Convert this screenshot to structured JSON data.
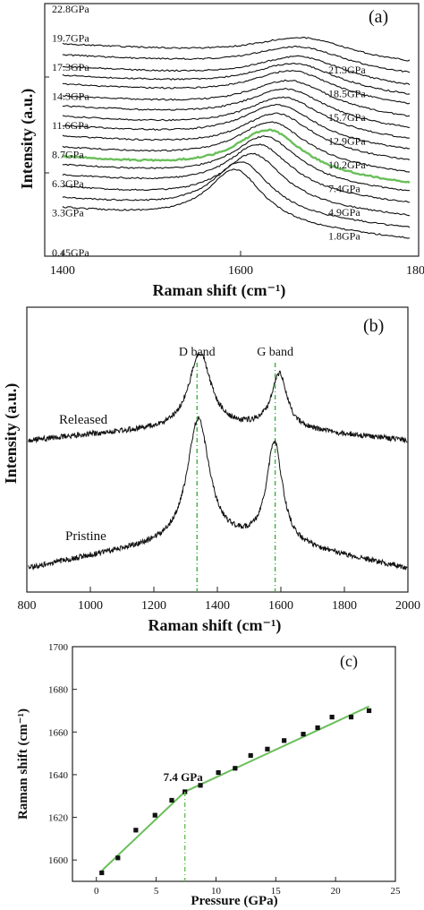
{
  "chart_data": [
    {
      "panel": "(a)",
      "type": "line",
      "xlabel": "Raman shift (cm⁻¹)",
      "ylabel": "Intensity (a.u.)",
      "xlim": [
        1380,
        1800
      ],
      "x_ticks": [
        1400,
        1600,
        1800
      ],
      "highlight_color": "#6abf5a",
      "line_color": "#111111",
      "series": [
        {
          "name": "0.45GPa",
          "pressure": 0.45,
          "peak": 1594
        },
        {
          "name": "1.8GPa",
          "pressure": 1.8,
          "peak": 1601
        },
        {
          "name": "3.3GPa",
          "pressure": 3.3,
          "peak": 1614
        },
        {
          "name": "4.9GPa",
          "pressure": 4.9,
          "peak": 1621
        },
        {
          "name": "6.3GPa",
          "pressure": 6.3,
          "peak": 1628
        },
        {
          "name": "7.4GPa",
          "pressure": 7.4,
          "peak": 1632
        },
        {
          "name": "8.7GPa",
          "pressure": 8.7,
          "peak": 1635
        },
        {
          "name": "10.2GPa",
          "pressure": 10.2,
          "peak": 1641
        },
        {
          "name": "11.6GPa",
          "pressure": 11.6,
          "peak": 1643
        },
        {
          "name": "12.9GPa",
          "pressure": 12.9,
          "peak": 1649
        },
        {
          "name": "14.3GPa",
          "pressure": 14.3,
          "peak": 1652
        },
        {
          "name": "15.7GPa",
          "pressure": 15.7,
          "peak": 1656
        },
        {
          "name": "17.3GPa",
          "pressure": 17.3,
          "peak": 1659
        },
        {
          "name": "18.5GPa",
          "pressure": 18.5,
          "peak": 1662
        },
        {
          "name": "19.7GPa",
          "pressure": 19.7,
          "peak": 1667
        },
        {
          "name": "21.3GPa",
          "pressure": 21.3,
          "peak": 1667
        },
        {
          "name": "22.8GPa",
          "pressure": 22.8,
          "peak": 1670
        }
      ],
      "highlighted_series": "7.4GPa"
    },
    {
      "panel": "(b)",
      "type": "line",
      "xlabel": "Raman shift (cm⁻¹)",
      "ylabel": "Intensity (a.u.)",
      "xlim": [
        800,
        2000
      ],
      "x_ticks": [
        800,
        1000,
        1200,
        1400,
        1600,
        1800,
        2000
      ],
      "series": [
        {
          "name": "Released",
          "d_peak": 1345,
          "g_peak": 1595
        },
        {
          "name": "Pristine",
          "d_peak": 1340,
          "g_peak": 1580
        }
      ],
      "reference_lines": [
        {
          "label": "D band",
          "x": 1336
        },
        {
          "label": "G band",
          "x": 1582
        }
      ],
      "reference_color": "#3cb043"
    },
    {
      "panel": "(c)",
      "type": "scatter",
      "xlabel": "Pressure (GPa)",
      "ylabel": "Raman shift (cm⁻¹)",
      "xlim": [
        -2,
        25
      ],
      "ylim": [
        1590,
        1700
      ],
      "x_ticks": [
        0,
        5,
        10,
        15,
        20,
        25
      ],
      "y_ticks": [
        1600,
        1620,
        1640,
        1660,
        1680,
        1700
      ],
      "points": {
        "x": [
          0.45,
          1.8,
          3.3,
          4.9,
          6.3,
          7.4,
          8.7,
          10.2,
          11.6,
          12.9,
          14.3,
          15.7,
          17.3,
          18.5,
          19.7,
          21.3,
          22.8
        ],
        "y": [
          1594,
          1601,
          1614,
          1621,
          1628,
          1632,
          1635,
          1641,
          1643,
          1649,
          1652,
          1656,
          1659,
          1662,
          1667,
          1667,
          1670
        ]
      },
      "fit_segments": [
        {
          "x": [
            0.45,
            7.4
          ],
          "y": [
            1595,
            1632
          ]
        },
        {
          "x": [
            7.4,
            22.8
          ],
          "y": [
            1632,
            1672
          ]
        }
      ],
      "annotation": {
        "text": "7.4 GPa",
        "x": 7.4
      },
      "fit_color": "#6abf5a"
    }
  ],
  "panels": {
    "a": {
      "tag": "(a)",
      "left_labels": [
        "22.8GPa",
        "19.7GPa",
        "17.3GPa",
        "14.3GPa",
        "11.6GPa",
        "8.7GPa",
        "6.3GPa",
        "3.3GPa",
        "0.45GPa"
      ],
      "right_labels": [
        "21.3GPa",
        "18.5GPa",
        "15.7GPa",
        "12.9GPa",
        "10.2GPa",
        "7.4GPa",
        "4.9GPa",
        "1.8GPa"
      ]
    },
    "b": {
      "tag": "(b)"
    },
    "c": {
      "tag": "(c)"
    }
  }
}
